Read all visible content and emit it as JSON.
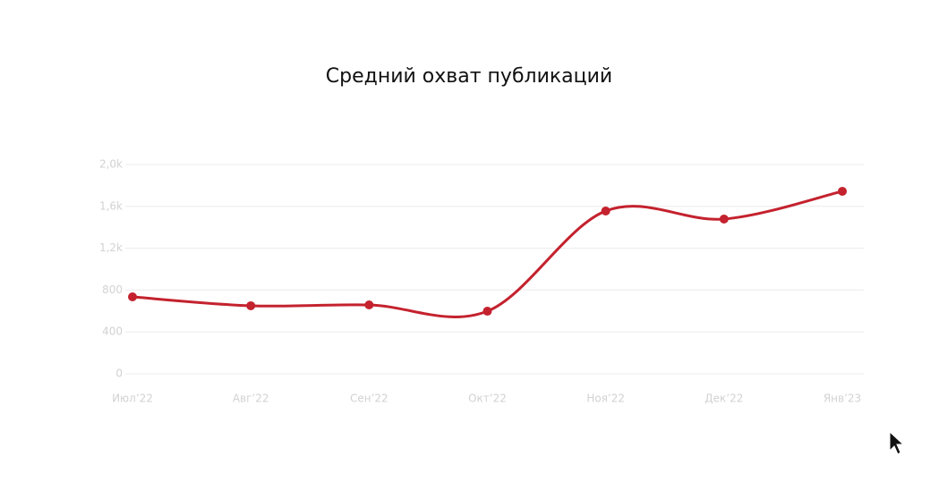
{
  "chart_data": {
    "type": "line",
    "title": "Средний охват публикаций",
    "categories": [
      "Июл’22",
      "Авг’22",
      "Сен’22",
      "Окт’22",
      "Ноя’22",
      "Дек’22",
      "Янв’23"
    ],
    "series": [
      {
        "name": "Средний охват",
        "color": "#c4222e",
        "values": [
          735,
          650,
          658,
          598,
          1556,
          1479,
          1744
        ]
      }
    ],
    "ylim": [
      0,
      2000
    ],
    "yticks": [
      0,
      400,
      800,
      {
        "value": 1200,
        "label": "1,2k"
      },
      {
        "value": 1600,
        "label": "1,6k"
      },
      {
        "value": 2000,
        "label": "2,0k"
      }
    ],
    "grid": true
  }
}
